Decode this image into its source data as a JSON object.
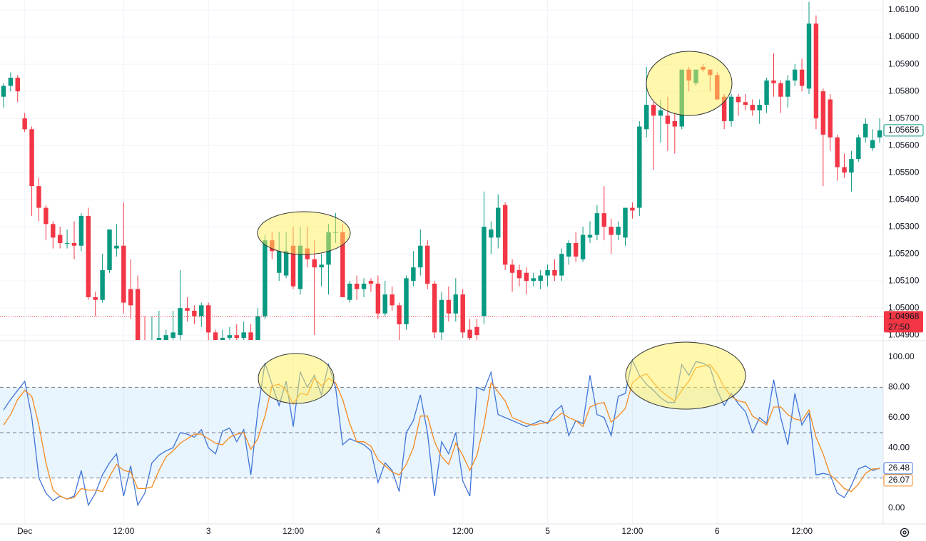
{
  "chart_data": [
    {
      "type": "candlestick",
      "up_color": "#089981",
      "down_color": "#f23645",
      "open": [
        1.0578,
        1.0582,
        1.0585,
        1.057,
        1.0566,
        1.0545,
        1.0537,
        1.0531,
        1.0527,
        1.0524,
        1.0524,
        1.0523,
        1.0534,
        1.0504,
        1.0503,
        1.0514,
        1.0522,
        1.0523,
        1.0507,
        1.0507,
        1.0488,
        1.0485,
        1.0487,
        1.0488,
        1.0489,
        1.049,
        1.05,
        1.0499,
        1.0497,
        1.0501,
        1.0491,
        1.0488,
        1.0489,
        1.049,
        1.0489,
        1.0491,
        1.0488,
        1.0497,
        1.0525,
        1.0513,
        1.0512,
        1.0523,
        1.0507,
        1.0522,
        1.0518,
        1.0515,
        1.0516,
        1.0528,
        1.0528,
        1.0503,
        1.0509,
        1.0507,
        1.051,
        1.0509,
        1.0498,
        1.0505,
        1.0501,
        1.0494,
        1.051,
        1.0515,
        1.0523,
        1.0509,
        1.0491,
        1.0503,
        1.0498,
        1.0505,
        1.0492,
        1.0493,
        1.0497,
        1.0526,
        1.0526,
        1.0538,
        1.0516,
        1.0514,
        1.0513,
        1.051,
        1.051,
        1.0512,
        1.0514,
        1.0512,
        1.0519,
        1.0524,
        1.0518,
        1.0526,
        1.0527,
        1.0535,
        1.053,
        1.0527,
        1.0526,
        1.0537,
        1.0537,
        1.0566,
        1.0575,
        1.0571,
        1.0571,
        1.0569,
        1.0567,
        1.0588,
        1.0583,
        1.0589,
        1.0588,
        1.0586,
        1.0578,
        1.0569,
        1.0578,
        1.0576,
        1.0575,
        1.0573,
        1.0575,
        1.0584,
        1.0583,
        1.0578,
        1.0584,
        1.0588,
        1.0581,
        1.0605,
        1.058,
        1.0577,
        1.0563,
        1.0552,
        1.055,
        1.0555,
        1.0563,
        1.0559,
        1.0563
      ],
      "high": [
        1.0583,
        1.0587,
        1.0586,
        1.0572,
        1.0567,
        1.0548,
        1.0538,
        1.0532,
        1.053,
        1.0529,
        1.0532,
        1.0535,
        1.0537,
        1.0506,
        1.052,
        1.0529,
        1.0531,
        1.0539,
        1.0518,
        1.0512,
        1.0497,
        1.0497,
        1.0499,
        1.0492,
        1.0499,
        1.0514,
        1.0504,
        1.0501,
        1.0502,
        1.0502,
        1.0492,
        1.0492,
        1.0493,
        1.0494,
        1.0495,
        1.0494,
        1.05,
        1.0527,
        1.0528,
        1.0528,
        1.0528,
        1.053,
        1.053,
        1.053,
        1.0525,
        1.052,
        1.0531,
        1.0535,
        1.0531,
        1.051,
        1.0512,
        1.0511,
        1.0511,
        1.0512,
        1.051,
        1.0508,
        1.0502,
        1.0512,
        1.0521,
        1.0529,
        1.0525,
        1.051,
        1.0506,
        1.0508,
        1.0511,
        1.0507,
        1.0496,
        1.0496,
        1.0543,
        1.0532,
        1.0542,
        1.0539,
        1.0518,
        1.0516,
        1.0515,
        1.0513,
        1.0514,
        1.0516,
        1.0518,
        1.0522,
        1.0525,
        1.0528,
        1.053,
        1.0532,
        1.0538,
        1.0545,
        1.0533,
        1.0532,
        1.0537,
        1.0539,
        1.0569,
        1.0589,
        1.0576,
        1.0577,
        1.0578,
        1.0572,
        1.0588,
        1.0589,
        1.0588,
        1.059,
        1.0588,
        1.0587,
        1.0579,
        1.0579,
        1.0579,
        1.0579,
        1.0577,
        1.0577,
        1.0585,
        1.0594,
        1.0584,
        1.0586,
        1.059,
        1.0592,
        1.0613,
        1.0608,
        1.0581,
        1.0579,
        1.0564,
        1.0557,
        1.0558,
        1.0564,
        1.057,
        1.0566,
        1.057
      ],
      "low": [
        1.0574,
        1.058,
        1.0576,
        1.0565,
        1.0534,
        1.0532,
        1.0525,
        1.0522,
        1.0522,
        1.0522,
        1.0518,
        1.0521,
        1.0503,
        1.0497,
        1.0502,
        1.0513,
        1.0519,
        1.0498,
        1.0496,
        1.0485,
        1.0482,
        1.048,
        1.0483,
        1.0485,
        1.0486,
        1.0488,
        1.0495,
        1.0494,
        1.0493,
        1.0488,
        1.0487,
        1.0486,
        1.0487,
        1.0487,
        1.0487,
        1.0486,
        1.0487,
        1.0496,
        1.0518,
        1.051,
        1.0511,
        1.0507,
        1.0505,
        1.0515,
        1.049,
        1.0508,
        1.0505,
        1.0524,
        1.0504,
        1.0502,
        1.0503,
        1.0504,
        1.0506,
        1.0496,
        1.0497,
        1.0499,
        1.0488,
        1.0492,
        1.0508,
        1.0512,
        1.0507,
        1.0489,
        1.0488,
        1.0495,
        1.0495,
        1.0489,
        1.0487,
        1.0487,
        1.0494,
        1.052,
        1.0522,
        1.0514,
        1.0506,
        1.0508,
        1.0505,
        1.0508,
        1.0507,
        1.0508,
        1.051,
        1.051,
        1.0516,
        1.0517,
        1.0517,
        1.0524,
        1.0525,
        1.0525,
        1.052,
        1.0525,
        1.0523,
        1.0533,
        1.0534,
        1.0563,
        1.0551,
        1.0561,
        1.0558,
        1.0557,
        1.0566,
        1.058,
        1.0582,
        1.0587,
        1.058,
        1.0577,
        1.0566,
        1.0567,
        1.0571,
        1.0573,
        1.0571,
        1.0568,
        1.0572,
        1.0578,
        1.0572,
        1.0574,
        1.0582,
        1.058,
        1.0579,
        1.0566,
        1.0545,
        1.0558,
        1.0547,
        1.0548,
        1.0543,
        1.0554,
        1.0561,
        1.0558,
        1.0561
      ],
      "close": [
        1.0582,
        1.0585,
        1.058,
        1.0566,
        1.0545,
        1.0537,
        1.0531,
        1.0526,
        1.0524,
        1.0524,
        1.0523,
        1.0534,
        1.0504,
        1.0503,
        1.0514,
        1.0529,
        1.0523,
        1.0502,
        1.0501,
        1.0488,
        1.0485,
        1.0487,
        1.0489,
        1.049,
        1.0491,
        1.05,
        1.0499,
        1.0497,
        1.0501,
        1.0491,
        1.0488,
        1.0489,
        1.049,
        1.0489,
        1.0491,
        1.0488,
        1.0497,
        1.0525,
        1.0521,
        1.0521,
        1.0521,
        1.0508,
        1.0523,
        1.0518,
        1.0515,
        1.0516,
        1.0528,
        1.0528,
        1.0504,
        1.0509,
        1.0507,
        1.0509,
        1.0509,
        1.0498,
        1.0505,
        1.0501,
        1.0494,
        1.0511,
        1.0515,
        1.0523,
        1.0509,
        1.0491,
        1.0503,
        1.0498,
        1.0505,
        1.0491,
        1.0489,
        1.049,
        1.053,
        1.0529,
        1.0537,
        1.0516,
        1.0513,
        1.0511,
        1.051,
        1.0511,
        1.0512,
        1.0514,
        1.0512,
        1.052,
        1.0524,
        1.0519,
        1.0527,
        1.0527,
        1.0535,
        1.053,
        1.0527,
        1.053,
        1.0537,
        1.0536,
        1.0567,
        1.0575,
        1.0571,
        1.0573,
        1.0568,
        1.0567,
        1.0588,
        1.0584,
        1.0588,
        1.0588,
        1.0586,
        1.0577,
        1.0569,
        1.0578,
        1.0576,
        1.0575,
        1.0573,
        1.0575,
        1.0584,
        1.0583,
        1.0578,
        1.0584,
        1.0588,
        1.0582,
        1.0605,
        1.057,
        1.0564,
        1.0563,
        1.0552,
        1.055,
        1.0555,
        1.0563,
        1.0568,
        1.0562,
        1.05656
      ],
      "xlim": [
        -0.5,
        124.5
      ],
      "xticks": [
        {
          "value": 3,
          "label": "Dec"
        },
        {
          "value": 17,
          "label": "12:00"
        },
        {
          "value": 29,
          "label": "3"
        },
        {
          "value": 41,
          "label": "12:00"
        },
        {
          "value": 53,
          "label": "4"
        },
        {
          "value": 65,
          "label": "12:00"
        },
        {
          "value": 77,
          "label": "5"
        },
        {
          "value": 89,
          "label": "12:00"
        },
        {
          "value": 101,
          "label": "6"
        },
        {
          "value": 113,
          "label": "12:00"
        }
      ],
      "ylim": [
        1.04882,
        1.06137
      ],
      "yticks": [
        {
          "value": 1.049,
          "label": "1.04900"
        },
        {
          "value": 1.05,
          "label": "1.05000"
        },
        {
          "value": 1.051,
          "label": "1.05100"
        },
        {
          "value": 1.052,
          "label": "1.05200"
        },
        {
          "value": 1.053,
          "label": "1.05300"
        },
        {
          "value": 1.054,
          "label": "1.05400"
        },
        {
          "value": 1.055,
          "label": "1.05500"
        },
        {
          "value": 1.056,
          "label": "1.05600"
        },
        {
          "value": 1.057,
          "label": "1.05700"
        },
        {
          "value": 1.058,
          "label": "1.05800"
        },
        {
          "value": 1.059,
          "label": "1.05900"
        },
        {
          "value": 1.06,
          "label": "1.06000"
        },
        {
          "value": 1.061,
          "label": "1.06100"
        }
      ],
      "price_line": {
        "value": 1.04968,
        "label": "1.04968",
        "countdown": "27:50",
        "color": "#f23645"
      },
      "grid": true
    },
    {
      "type": "line",
      "series": [
        {
          "name": "%K",
          "color": "#3f74d6",
          "values": [
            65,
            72,
            78,
            84,
            60,
            20,
            10,
            5,
            8,
            6,
            8,
            25,
            2,
            10,
            22,
            30,
            36,
            8,
            28,
            2,
            10,
            30,
            35,
            38,
            40,
            50,
            49,
            47,
            52,
            40,
            36,
            51,
            53,
            44,
            52,
            22,
            65,
            96,
            82,
            68,
            84,
            54,
            90,
            80,
            88,
            75,
            95,
            80,
            42,
            46,
            44,
            42,
            38,
            17,
            30,
            25,
            11,
            50,
            58,
            75,
            50,
            8,
            44,
            36,
            50,
            18,
            8,
            80,
            78,
            90,
            62,
            60,
            58,
            56,
            54,
            56,
            58,
            56,
            64,
            68,
            48,
            58,
            56,
            88,
            62,
            60,
            48,
            74,
            76,
            98,
            88,
            82,
            78,
            73,
            70,
            70,
            95,
            88,
            97,
            96,
            93,
            78,
            68,
            76,
            69,
            64,
            50,
            60,
            56,
            85,
            60,
            42,
            76,
            55,
            63,
            22,
            23,
            22,
            10,
            7,
            15,
            26,
            28,
            25,
            26.48
          ]
        },
        {
          "name": "%D",
          "color": "#f5891f",
          "values": [
            55,
            62,
            72,
            78,
            74,
            55,
            30,
            12,
            8,
            6,
            7,
            13,
            12,
            12,
            11,
            21,
            29,
            25,
            24,
            13,
            13,
            14,
            25,
            34,
            38,
            43,
            46,
            49,
            49,
            46,
            43,
            42,
            47,
            49,
            50,
            39,
            46,
            61,
            81,
            82,
            78,
            69,
            76,
            75,
            86,
            81,
            86,
            83,
            72,
            56,
            44,
            44,
            41,
            32,
            28,
            24,
            22,
            29,
            40,
            61,
            61,
            44,
            34,
            29,
            43,
            35,
            25,
            35,
            55,
            83,
            77,
            71,
            60,
            58,
            56,
            55,
            56,
            57,
            59,
            63,
            60,
            58,
            54,
            67,
            69,
            70,
            57,
            61,
            66,
            83,
            87,
            89,
            83,
            78,
            74,
            71,
            78,
            84,
            93,
            94,
            95,
            89,
            80,
            74,
            71,
            70,
            61,
            58,
            55,
            67,
            67,
            62,
            59,
            58,
            65,
            47,
            36,
            22,
            18,
            13,
            11,
            16,
            23,
            26,
            26.07
          ]
        }
      ],
      "xlim": [
        -0.5,
        124.5
      ],
      "ylim": [
        -10.4,
        110.4
      ],
      "yticks": [
        {
          "value": 0,
          "label": "0.00"
        },
        {
          "value": 40,
          "label": "40.00"
        },
        {
          "value": 60,
          "label": "60.00"
        },
        {
          "value": 80,
          "label": "80.00"
        },
        {
          "value": 100,
          "label": "100.00"
        }
      ],
      "levels": [
        20,
        50,
        80
      ],
      "band_color": "#2196f3"
    }
  ]
}
